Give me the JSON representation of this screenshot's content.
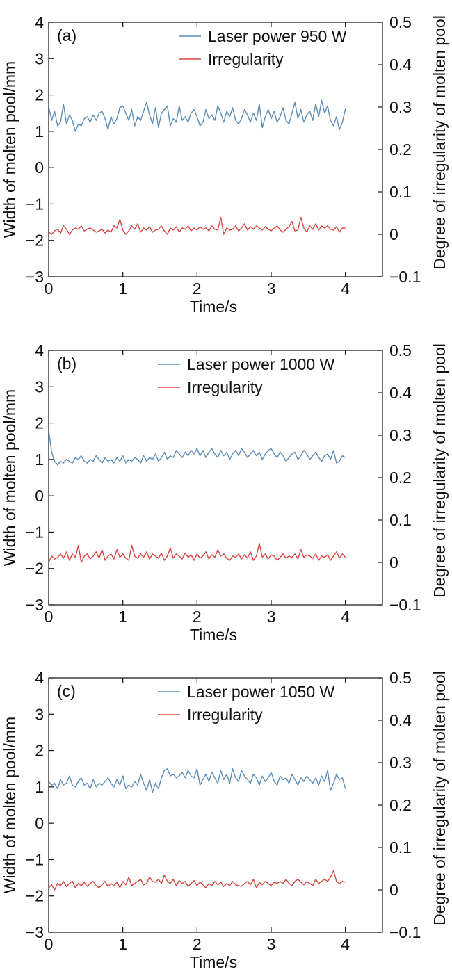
{
  "colors": {
    "width_series": "#5b8db8",
    "irregularity_series": "#d9453f",
    "axis": "#111111"
  },
  "chart_data": [
    {
      "type": "line",
      "panel_label": "(a)",
      "xlabel": "Time/s",
      "ylabel": "Width of molten pool/mm",
      "y2label": "Degree of irregularity of molten pool",
      "xlim": [
        0,
        4.5
      ],
      "ylim": [
        -3,
        4
      ],
      "y2lim": [
        -0.1,
        0.5
      ],
      "xticks": [
        0,
        1,
        2,
        3,
        4
      ],
      "xtick_labels": [
        "0",
        "1",
        "2",
        "3",
        "4"
      ],
      "yticks": [
        -3,
        -2,
        -1,
        0,
        1,
        2,
        3,
        4
      ],
      "ytick_labels": [
        "−3",
        "−2",
        "−1",
        "0",
        "1",
        "2",
        "3",
        "4"
      ],
      "y2ticks": [
        -0.1,
        0,
        0.1,
        0.2,
        0.3,
        0.4,
        0.5
      ],
      "y2tick_labels": [
        "−0.1",
        "0",
        "0.1",
        "0.2",
        "0.3",
        "0.4",
        "0.5"
      ],
      "legend_position": "top-right",
      "grid": false,
      "x": [
        0.0,
        0.04,
        0.08,
        0.12,
        0.16,
        0.2,
        0.24,
        0.28,
        0.32,
        0.36,
        0.4,
        0.44,
        0.48,
        0.52,
        0.56,
        0.6,
        0.64,
        0.68,
        0.72,
        0.76,
        0.8,
        0.84,
        0.88,
        0.92,
        0.96,
        1.0,
        1.04,
        1.08,
        1.12,
        1.16,
        1.2,
        1.24,
        1.28,
        1.32,
        1.36,
        1.4,
        1.44,
        1.48,
        1.52,
        1.56,
        1.6,
        1.64,
        1.68,
        1.72,
        1.76,
        1.8,
        1.84,
        1.88,
        1.92,
        1.96,
        2.0,
        2.04,
        2.08,
        2.12,
        2.16,
        2.2,
        2.24,
        2.28,
        2.32,
        2.36,
        2.4,
        2.44,
        2.48,
        2.52,
        2.56,
        2.6,
        2.64,
        2.68,
        2.72,
        2.76,
        2.8,
        2.84,
        2.88,
        2.92,
        2.96,
        3.0,
        3.04,
        3.08,
        3.12,
        3.16,
        3.2,
        3.24,
        3.28,
        3.32,
        3.36,
        3.4,
        3.44,
        3.48,
        3.52,
        3.56,
        3.6,
        3.64,
        3.68,
        3.72,
        3.76,
        3.8,
        3.84,
        3.88,
        3.92,
        3.96,
        4.0
      ],
      "series": [
        {
          "name": "Laser power 950 W",
          "axis": "left",
          "color": "#5b8db8",
          "values": [
            1.68,
            1.3,
            1.55,
            1.15,
            1.25,
            1.75,
            1.2,
            1.45,
            1.3,
            1.0,
            1.2,
            1.15,
            1.35,
            1.4,
            1.25,
            1.45,
            1.3,
            1.5,
            1.55,
            1.35,
            1.05,
            1.4,
            1.2,
            1.35,
            1.65,
            1.7,
            1.5,
            1.3,
            1.6,
            1.15,
            1.4,
            1.3,
            1.55,
            1.8,
            1.45,
            1.2,
            1.65,
            1.1,
            1.5,
            1.6,
            1.7,
            1.15,
            1.35,
            1.25,
            1.7,
            1.3,
            1.4,
            1.25,
            1.5,
            1.6,
            1.4,
            1.15,
            1.25,
            1.6,
            1.35,
            1.45,
            1.3,
            1.7,
            1.5,
            1.25,
            1.55,
            1.4,
            1.65,
            1.3,
            1.2,
            1.35,
            1.6,
            1.45,
            1.25,
            1.5,
            1.3,
            1.75,
            1.1,
            1.4,
            1.6,
            1.35,
            1.55,
            1.25,
            1.4,
            1.65,
            1.3,
            1.2,
            1.5,
            1.8,
            1.35,
            1.6,
            1.25,
            1.45,
            1.55,
            1.3,
            1.75,
            1.4,
            1.85,
            1.5,
            1.7,
            1.3,
            1.15,
            1.4,
            1.05,
            1.25,
            1.62
          ]
        },
        {
          "name": "Irregularity",
          "axis": "right",
          "color": "#d9453f",
          "values": [
            0.005,
            0.0,
            0.008,
            0.012,
            0.003,
            0.02,
            0.012,
            0.0,
            0.01,
            0.015,
            0.012,
            0.02,
            0.008,
            0.012,
            0.015,
            0.01,
            0.005,
            0.008,
            0.012,
            0.003,
            0.01,
            0.005,
            0.02,
            0.015,
            0.035,
            0.01,
            0.0,
            0.008,
            0.02,
            0.012,
            0.025,
            0.005,
            0.015,
            0.01,
            0.018,
            0.005,
            0.01,
            0.012,
            0.02,
            0.008,
            0.0,
            0.015,
            0.01,
            0.018,
            0.005,
            0.015,
            0.012,
            0.02,
            0.008,
            0.015,
            0.01,
            0.018,
            0.012,
            0.015,
            0.008,
            0.02,
            0.012,
            0.01,
            0.04,
            0.0,
            0.015,
            0.01,
            0.012,
            0.02,
            0.008,
            0.015,
            0.025,
            0.01,
            0.018,
            0.012,
            0.02,
            0.015,
            0.01,
            0.018,
            0.012,
            0.008,
            0.015,
            0.02,
            0.01,
            0.005,
            0.012,
            0.018,
            0.03,
            0.008,
            0.01,
            0.04,
            0.015,
            0.005,
            0.02,
            0.012,
            0.025,
            0.01,
            0.02,
            0.015,
            0.02,
            0.012,
            0.01,
            0.018,
            0.005,
            0.015,
            0.015
          ]
        }
      ]
    },
    {
      "type": "line",
      "panel_label": "(b)",
      "xlabel": "Time/s",
      "ylabel": "Width of molten pool/mm",
      "y2label": "Degree of irregularity of molten pool",
      "xlim": [
        0,
        4.5
      ],
      "ylim": [
        -3,
        4
      ],
      "y2lim": [
        -0.1,
        0.5
      ],
      "xticks": [
        0,
        1,
        2,
        3,
        4
      ],
      "xtick_labels": [
        "0",
        "1",
        "2",
        "3",
        "4"
      ],
      "yticks": [
        -3,
        -2,
        -1,
        0,
        1,
        2,
        3,
        4
      ],
      "ytick_labels": [
        "−3",
        "−2",
        "−1",
        "0",
        "1",
        "2",
        "3",
        "4"
      ],
      "y2ticks": [
        -0.1,
        0,
        0.1,
        0.2,
        0.3,
        0.4,
        0.5
      ],
      "y2tick_labels": [
        "−0.1",
        "0",
        "0.1",
        "0.2",
        "0.3",
        "0.4",
        "0.5"
      ],
      "legend_position": "top-right",
      "grid": false,
      "x": [
        0.0,
        0.04,
        0.08,
        0.12,
        0.16,
        0.2,
        0.24,
        0.28,
        0.32,
        0.36,
        0.4,
        0.44,
        0.48,
        0.52,
        0.56,
        0.6,
        0.64,
        0.68,
        0.72,
        0.76,
        0.8,
        0.84,
        0.88,
        0.92,
        0.96,
        1.0,
        1.04,
        1.08,
        1.12,
        1.16,
        1.2,
        1.24,
        1.28,
        1.32,
        1.36,
        1.4,
        1.44,
        1.48,
        1.52,
        1.56,
        1.6,
        1.64,
        1.68,
        1.72,
        1.76,
        1.8,
        1.84,
        1.88,
        1.92,
        1.96,
        2.0,
        2.04,
        2.08,
        2.12,
        2.16,
        2.2,
        2.24,
        2.28,
        2.32,
        2.36,
        2.4,
        2.44,
        2.48,
        2.52,
        2.56,
        2.6,
        2.64,
        2.68,
        2.72,
        2.76,
        2.8,
        2.84,
        2.88,
        2.92,
        2.96,
        3.0,
        3.04,
        3.08,
        3.12,
        3.16,
        3.2,
        3.24,
        3.28,
        3.32,
        3.36,
        3.4,
        3.44,
        3.48,
        3.52,
        3.56,
        3.6,
        3.64,
        3.68,
        3.72,
        3.76,
        3.8,
        3.84,
        3.88,
        3.92,
        3.96,
        4.0
      ],
      "series": [
        {
          "name": "Laser power 1000 W",
          "axis": "left",
          "color": "#5b8db8",
          "values": [
            1.8,
            1.2,
            0.95,
            0.85,
            0.95,
            0.9,
            1.0,
            0.95,
            0.9,
            1.05,
            1.0,
            1.1,
            0.95,
            0.9,
            1.0,
            0.95,
            1.1,
            1.0,
            0.9,
            1.05,
            0.95,
            1.0,
            0.9,
            1.05,
            0.95,
            1.1,
            0.9,
            1.0,
            0.95,
            1.05,
            1.0,
            0.9,
            1.1,
            0.95,
            1.05,
            1.0,
            1.15,
            0.95,
            1.05,
            1.2,
            1.0,
            1.1,
            1.05,
            1.25,
            1.15,
            1.05,
            1.2,
            1.1,
            1.25,
            1.15,
            1.3,
            1.1,
            1.25,
            1.05,
            1.2,
            1.3,
            1.15,
            1.05,
            1.25,
            1.1,
            1.2,
            1.0,
            1.15,
            1.25,
            1.1,
            1.3,
            1.2,
            1.05,
            1.15,
            1.25,
            1.1,
            1.2,
            1.0,
            1.15,
            1.25,
            1.3,
            1.15,
            1.05,
            1.2,
            1.1,
            0.95,
            1.05,
            1.15,
            1.2,
            1.0,
            1.1,
            1.25,
            1.15,
            1.0,
            1.1,
            1.2,
            1.05,
            0.95,
            1.1,
            1.15,
            1.0,
            1.25,
            0.9,
            0.95,
            1.1,
            1.05
          ]
        },
        {
          "name": "Irregularity",
          "axis": "right",
          "color": "#d9453f",
          "values": [
            0.0,
            0.015,
            0.008,
            0.012,
            0.02,
            0.01,
            0.025,
            0.005,
            0.02,
            0.012,
            0.04,
            0.0,
            0.015,
            0.02,
            0.008,
            0.015,
            0.025,
            0.01,
            0.03,
            0.005,
            0.015,
            0.02,
            0.008,
            0.03,
            0.012,
            0.02,
            0.01,
            0.005,
            0.04,
            0.015,
            0.01,
            0.02,
            0.012,
            0.025,
            0.008,
            0.02,
            0.015,
            0.01,
            0.022,
            0.005,
            0.015,
            0.035,
            0.01,
            0.02,
            0.015,
            0.008,
            0.022,
            0.012,
            0.018,
            0.005,
            0.02,
            0.01,
            0.015,
            0.025,
            0.008,
            0.018,
            0.012,
            0.03,
            0.015,
            0.02,
            0.01,
            0.005,
            0.015,
            0.012,
            0.02,
            0.008,
            0.018,
            0.01,
            0.025,
            0.005,
            0.015,
            0.045,
            0.012,
            0.02,
            0.008,
            0.018,
            0.015,
            0.005,
            0.012,
            0.02,
            0.01,
            0.015,
            0.012,
            0.02,
            0.008,
            0.03,
            0.012,
            0.018,
            0.015,
            0.01,
            0.02,
            0.005,
            0.015,
            0.012,
            0.018,
            0.005,
            0.015,
            0.025,
            0.01,
            0.02,
            0.012
          ]
        }
      ]
    },
    {
      "type": "line",
      "panel_label": "(c)",
      "xlabel": "Time/s",
      "ylabel": "Width of molten pool/mm",
      "y2label": "Degree of irregularity of molten pool",
      "xlim": [
        0,
        4.5
      ],
      "ylim": [
        -3,
        4
      ],
      "y2lim": [
        -0.1,
        0.5
      ],
      "xticks": [
        0,
        1,
        2,
        3,
        4
      ],
      "xtick_labels": [
        "0",
        "1",
        "2",
        "3",
        "4"
      ],
      "yticks": [
        -3,
        -2,
        -1,
        0,
        1,
        2,
        3,
        4
      ],
      "ytick_labels": [
        "−3",
        "−2",
        "−1",
        "0",
        "1",
        "2",
        "3",
        "4"
      ],
      "y2ticks": [
        -0.1,
        0,
        0.1,
        0.2,
        0.3,
        0.4,
        0.5
      ],
      "y2tick_labels": [
        "−0.1",
        "0",
        "0.1",
        "0.2",
        "0.3",
        "0.4",
        "0.5"
      ],
      "legend_position": "top-right",
      "grid": false,
      "x": [
        0.0,
        0.04,
        0.08,
        0.12,
        0.16,
        0.2,
        0.24,
        0.28,
        0.32,
        0.36,
        0.4,
        0.44,
        0.48,
        0.52,
        0.56,
        0.6,
        0.64,
        0.68,
        0.72,
        0.76,
        0.8,
        0.84,
        0.88,
        0.92,
        0.96,
        1.0,
        1.04,
        1.08,
        1.12,
        1.16,
        1.2,
        1.24,
        1.28,
        1.32,
        1.36,
        1.4,
        1.44,
        1.48,
        1.52,
        1.56,
        1.6,
        1.64,
        1.68,
        1.72,
        1.76,
        1.8,
        1.84,
        1.88,
        1.92,
        1.96,
        2.0,
        2.04,
        2.08,
        2.12,
        2.16,
        2.2,
        2.24,
        2.28,
        2.32,
        2.36,
        2.4,
        2.44,
        2.48,
        2.52,
        2.56,
        2.6,
        2.64,
        2.68,
        2.72,
        2.76,
        2.8,
        2.84,
        2.88,
        2.92,
        2.96,
        3.0,
        3.04,
        3.08,
        3.12,
        3.16,
        3.2,
        3.24,
        3.28,
        3.32,
        3.36,
        3.4,
        3.44,
        3.48,
        3.52,
        3.56,
        3.6,
        3.64,
        3.68,
        3.72,
        3.76,
        3.8,
        3.84,
        3.88,
        3.92,
        3.96,
        4.0
      ],
      "series": [
        {
          "name": "Laser power 1050 W",
          "axis": "left",
          "color": "#5b8db8",
          "values": [
            1.15,
            1.05,
            1.1,
            0.95,
            1.2,
            1.05,
            1.1,
            1.3,
            1.05,
            1.0,
            1.15,
            1.25,
            1.05,
            1.1,
            0.95,
            1.2,
            1.0,
            1.1,
            1.05,
            1.15,
            1.25,
            1.1,
            1.0,
            1.2,
            1.05,
            1.3,
            0.95,
            1.05,
            1.0,
            1.15,
            1.05,
            1.35,
            1.1,
            0.9,
            1.2,
            0.85,
            1.1,
            0.95,
            1.25,
            1.45,
            1.5,
            1.3,
            1.35,
            1.25,
            1.3,
            1.4,
            1.25,
            1.45,
            1.3,
            1.25,
            1.5,
            1.05,
            1.2,
            1.35,
            1.15,
            1.4,
            1.25,
            1.1,
            1.45,
            1.2,
            1.35,
            1.1,
            1.5,
            1.25,
            1.15,
            1.45,
            1.3,
            1.2,
            1.1,
            1.35,
            1.25,
            1.05,
            1.3,
            1.15,
            1.25,
            1.4,
            1.15,
            1.05,
            1.3,
            1.2,
            1.25,
            1.1,
            1.35,
            1.2,
            1.05,
            1.25,
            1.15,
            1.3,
            1.2,
            1.1,
            1.25,
            1.05,
            1.3,
            1.15,
            1.45,
            0.9,
            1.1,
            1.35,
            1.2,
            1.25,
            0.95
          ]
        },
        {
          "name": "Irregularity",
          "axis": "right",
          "color": "#d9453f",
          "values": [
            0.005,
            0.012,
            0.0,
            0.015,
            0.01,
            0.02,
            0.008,
            0.015,
            0.02,
            0.005,
            0.015,
            0.01,
            0.018,
            0.008,
            0.015,
            0.02,
            0.01,
            0.005,
            0.012,
            0.02,
            0.008,
            0.015,
            0.01,
            0.018,
            0.005,
            0.02,
            0.012,
            0.03,
            0.01,
            0.015,
            0.02,
            0.025,
            0.012,
            0.015,
            0.03,
            0.02,
            0.018,
            0.025,
            0.015,
            0.035,
            0.02,
            0.015,
            0.025,
            0.01,
            0.022,
            0.015,
            0.02,
            0.008,
            0.015,
            0.022,
            0.01,
            0.018,
            0.012,
            0.005,
            0.015,
            0.01,
            0.02,
            0.012,
            0.018,
            0.008,
            0.015,
            0.01,
            0.02,
            0.012,
            0.01,
            0.008,
            0.015,
            0.02,
            0.012,
            0.025,
            0.005,
            0.018,
            0.012,
            0.02,
            0.015,
            0.01,
            0.018,
            0.015,
            0.02,
            0.015,
            0.025,
            0.015,
            0.01,
            0.02,
            0.025,
            0.018,
            0.012,
            0.02,
            0.015,
            0.01,
            0.025,
            0.015,
            0.02,
            0.025,
            0.02,
            0.03,
            0.045,
            0.02,
            0.015,
            0.02,
            0.018
          ]
        }
      ]
    }
  ]
}
